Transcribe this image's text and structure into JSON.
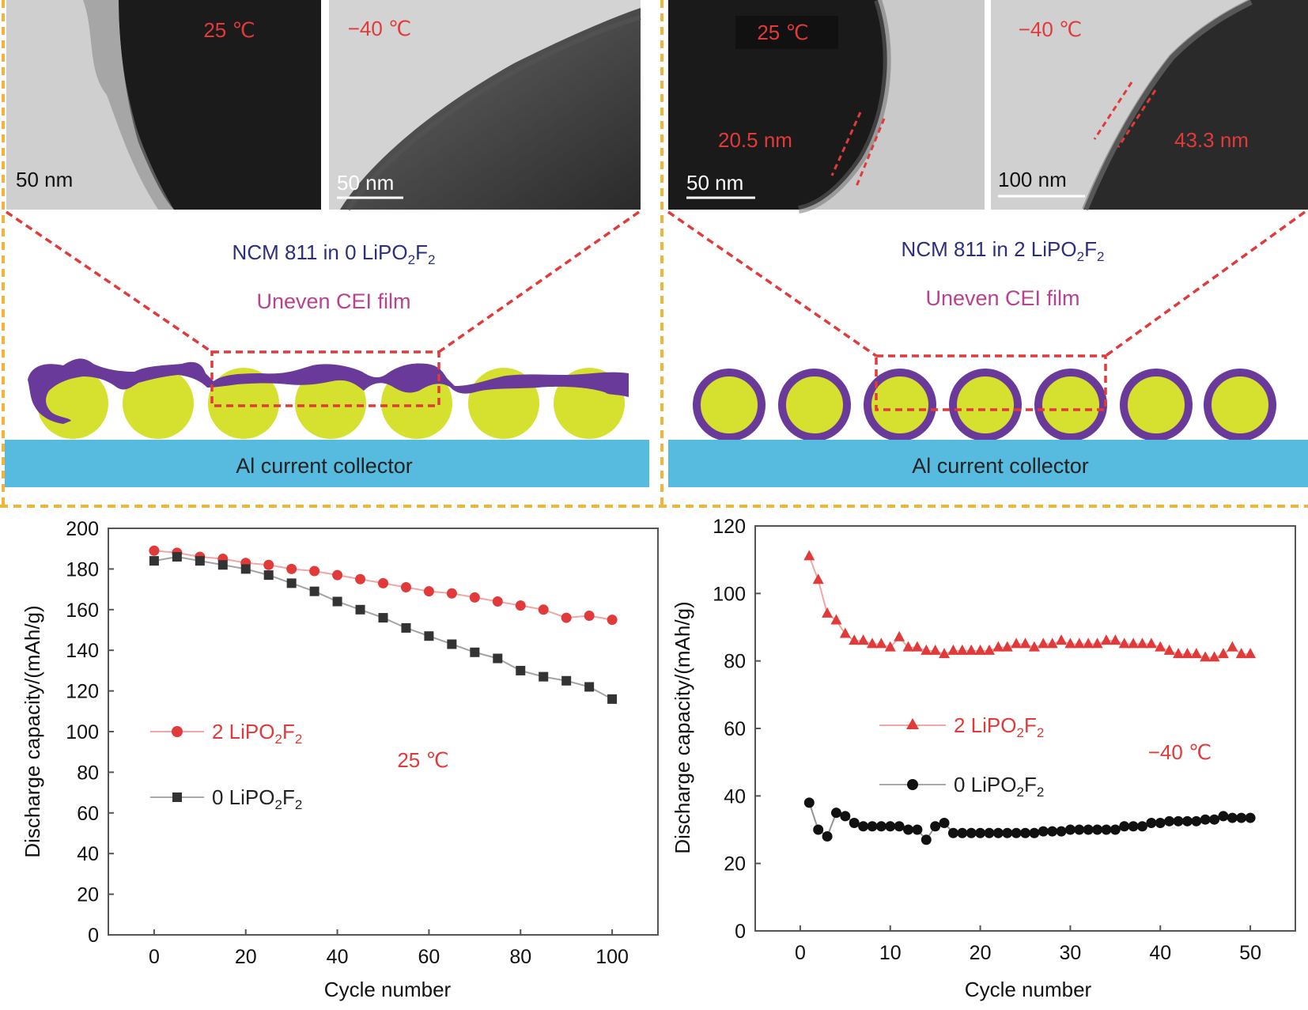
{
  "colors": {
    "red": "#e03a3a",
    "navy": "#2b2f7d",
    "magenta": "#b8428e",
    "purple": "#6a3a9a",
    "yellow": "#d6e02f",
    "collector": "#56bbdf",
    "frame": "#f2b53a",
    "dark": "#222222"
  },
  "tem": {
    "left": [
      {
        "temp": "25 ℃",
        "scale": "50 nm"
      },
      {
        "temp": "−40 ℃",
        "scale": "50 nm"
      }
    ],
    "right": [
      {
        "temp": "25 ℃",
        "scale": "50 nm",
        "thickness": "20.5 nm"
      },
      {
        "temp": "−40 ℃",
        "scale": "100 nm",
        "thickness": "43.3 nm"
      }
    ]
  },
  "schematic": {
    "left": {
      "title_pre": "NCM 811 in 0 LiPO",
      "title_sub1": "2",
      "title_mid": "F",
      "title_sub2": "2",
      "subtitle": "Uneven CEI film",
      "collector": "Al current collector"
    },
    "right": {
      "title_pre": "NCM 811 in 2 LiPO",
      "title_sub1": "2",
      "title_mid": "F",
      "title_sub2": "2",
      "subtitle": "Uneven CEI film",
      "collector": "Al current collector"
    }
  },
  "chart_data": [
    {
      "type": "line",
      "xlabel": "Cycle number",
      "ylabel": "Discharge capacity/(mAh/g)",
      "xlim": [
        -10,
        110
      ],
      "ylim": [
        0,
        200
      ],
      "xticks": [
        0,
        20,
        40,
        60,
        80,
        100
      ],
      "yticks": [
        0,
        20,
        40,
        60,
        80,
        100,
        120,
        140,
        160,
        180,
        200
      ],
      "annotation": "25 ℃",
      "series": [
        {
          "name": "2 LiPO2F2",
          "label_pre": "2 LiPO",
          "label_sub1": "2",
          "label_mid": "F",
          "label_sub2": "2",
          "marker": "circle",
          "color": "#e03a3a",
          "x": [
            0,
            5,
            10,
            15,
            20,
            25,
            30,
            35,
            40,
            45,
            50,
            55,
            60,
            65,
            70,
            75,
            80,
            85,
            90,
            95,
            100
          ],
          "y": [
            189,
            188,
            186,
            185,
            183,
            182,
            180,
            179,
            177,
            175,
            173,
            171,
            169,
            168,
            166,
            164,
            162,
            160,
            156,
            157,
            155
          ]
        },
        {
          "name": "0 LiPO2F2",
          "label_pre": "0 LiPO",
          "label_sub1": "2",
          "label_mid": "F",
          "label_sub2": "2",
          "marker": "square",
          "color": "#333333",
          "x": [
            0,
            5,
            10,
            15,
            20,
            25,
            30,
            35,
            40,
            45,
            50,
            55,
            60,
            65,
            70,
            75,
            80,
            85,
            90,
            95,
            100
          ],
          "y": [
            184,
            186,
            184,
            182,
            180,
            177,
            173,
            169,
            164,
            160,
            156,
            151,
            147,
            143,
            139,
            136,
            130,
            127,
            125,
            122,
            116
          ]
        }
      ]
    },
    {
      "type": "line",
      "xlabel": "Cycle number",
      "ylabel": "Discharge capacity/(mAh/g)",
      "xlim": [
        -5,
        55
      ],
      "ylim": [
        0,
        120
      ],
      "xticks": [
        0,
        10,
        20,
        30,
        40,
        50
      ],
      "yticks": [
        0,
        20,
        40,
        60,
        80,
        100,
        120
      ],
      "annotation": "−40 ℃",
      "series": [
        {
          "name": "2 LiPO2F2",
          "label_pre": "2 LiPO",
          "label_sub1": "2",
          "label_mid": "F",
          "label_sub2": "2",
          "marker": "triangle",
          "color": "#e03a3a",
          "x": [
            1,
            2,
            3,
            4,
            5,
            6,
            7,
            8,
            9,
            10,
            11,
            12,
            13,
            14,
            15,
            16,
            17,
            18,
            19,
            20,
            21,
            22,
            23,
            24,
            25,
            26,
            27,
            28,
            29,
            30,
            31,
            32,
            33,
            34,
            35,
            36,
            37,
            38,
            39,
            40,
            41,
            42,
            43,
            44,
            45,
            46,
            47,
            48,
            49,
            50
          ],
          "y": [
            111,
            104,
            94,
            92,
            88,
            86,
            86,
            85,
            85,
            84,
            87,
            84,
            84,
            83,
            83,
            82,
            83,
            83,
            83,
            83,
            83,
            84,
            84,
            85,
            85,
            84,
            85,
            85,
            86,
            85,
            85,
            85,
            85,
            86,
            86,
            85,
            85,
            85,
            85,
            84,
            83,
            82,
            82,
            82,
            81,
            81,
            82,
            84,
            82,
            82
          ]
        },
        {
          "name": "0 LiPO2F2",
          "label_pre": "0 LiPO",
          "label_sub1": "2",
          "label_mid": "F",
          "label_sub2": "2",
          "marker": "circle",
          "color": "#111111",
          "x": [
            1,
            2,
            3,
            4,
            5,
            6,
            7,
            8,
            9,
            10,
            11,
            12,
            13,
            14,
            15,
            16,
            17,
            18,
            19,
            20,
            21,
            22,
            23,
            24,
            25,
            26,
            27,
            28,
            29,
            30,
            31,
            32,
            33,
            34,
            35,
            36,
            37,
            38,
            39,
            40,
            41,
            42,
            43,
            44,
            45,
            46,
            47,
            48,
            49,
            50
          ],
          "y": [
            38,
            30,
            28,
            35,
            34,
            32,
            31,
            31,
            31,
            31,
            31,
            30,
            30,
            27,
            31,
            32,
            29,
            29,
            29,
            29,
            29,
            29,
            29,
            29,
            29,
            29,
            29.5,
            29.5,
            29.5,
            30,
            30,
            30,
            30,
            30,
            30,
            31,
            31,
            31,
            32,
            32,
            32.5,
            32.5,
            32.5,
            32.5,
            33,
            33,
            34,
            33.5,
            33.5,
            33.5
          ]
        }
      ]
    }
  ]
}
